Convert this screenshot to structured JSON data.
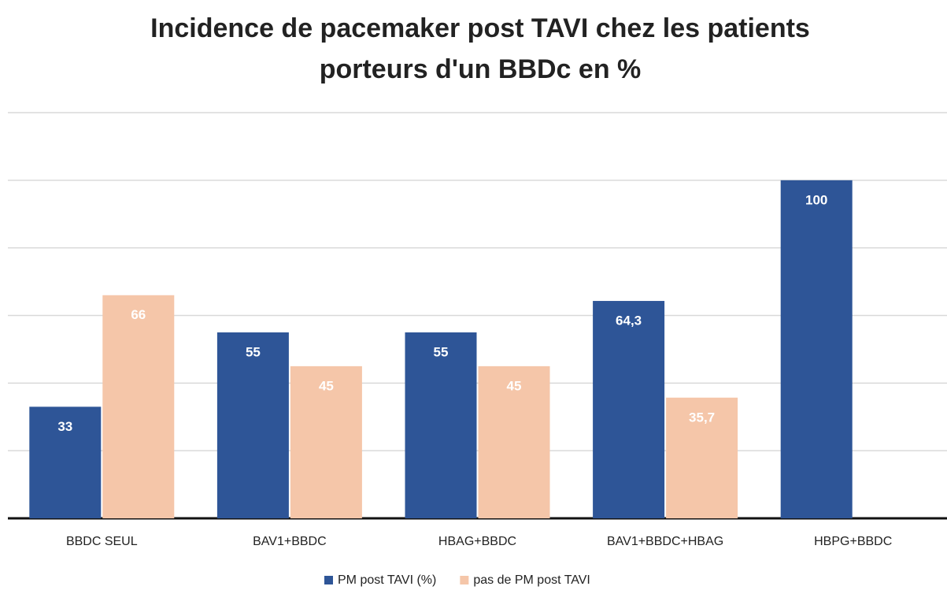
{
  "chart_data": {
    "type": "bar",
    "title": [
      "Incidence de pacemaker post TAVI chez les patients",
      "porteurs d'un BBDc en %"
    ],
    "categories": [
      "BBDC SEUL",
      "BAV1+BBDC",
      "HBAG+BBDC",
      "BAV1+BBDC+HBAG",
      "HBPG+BBDC"
    ],
    "series": [
      {
        "name": "PM post TAVI (%)",
        "color": "#2e5597",
        "values": [
          33,
          55,
          55,
          64.3,
          100
        ],
        "value_labels": [
          "33",
          "55",
          "55",
          "64,3",
          "100"
        ]
      },
      {
        "name": "pas de PM post TAVI",
        "color": "#f5c6a9",
        "values": [
          66,
          45,
          45,
          35.7,
          null
        ],
        "value_labels": [
          "66",
          "45",
          "45",
          "35,7",
          null
        ]
      }
    ],
    "ylim": [
      0,
      120
    ],
    "yticks": [
      0,
      20,
      40,
      60,
      80,
      100,
      120
    ],
    "grid": true,
    "legend": "bottom"
  }
}
